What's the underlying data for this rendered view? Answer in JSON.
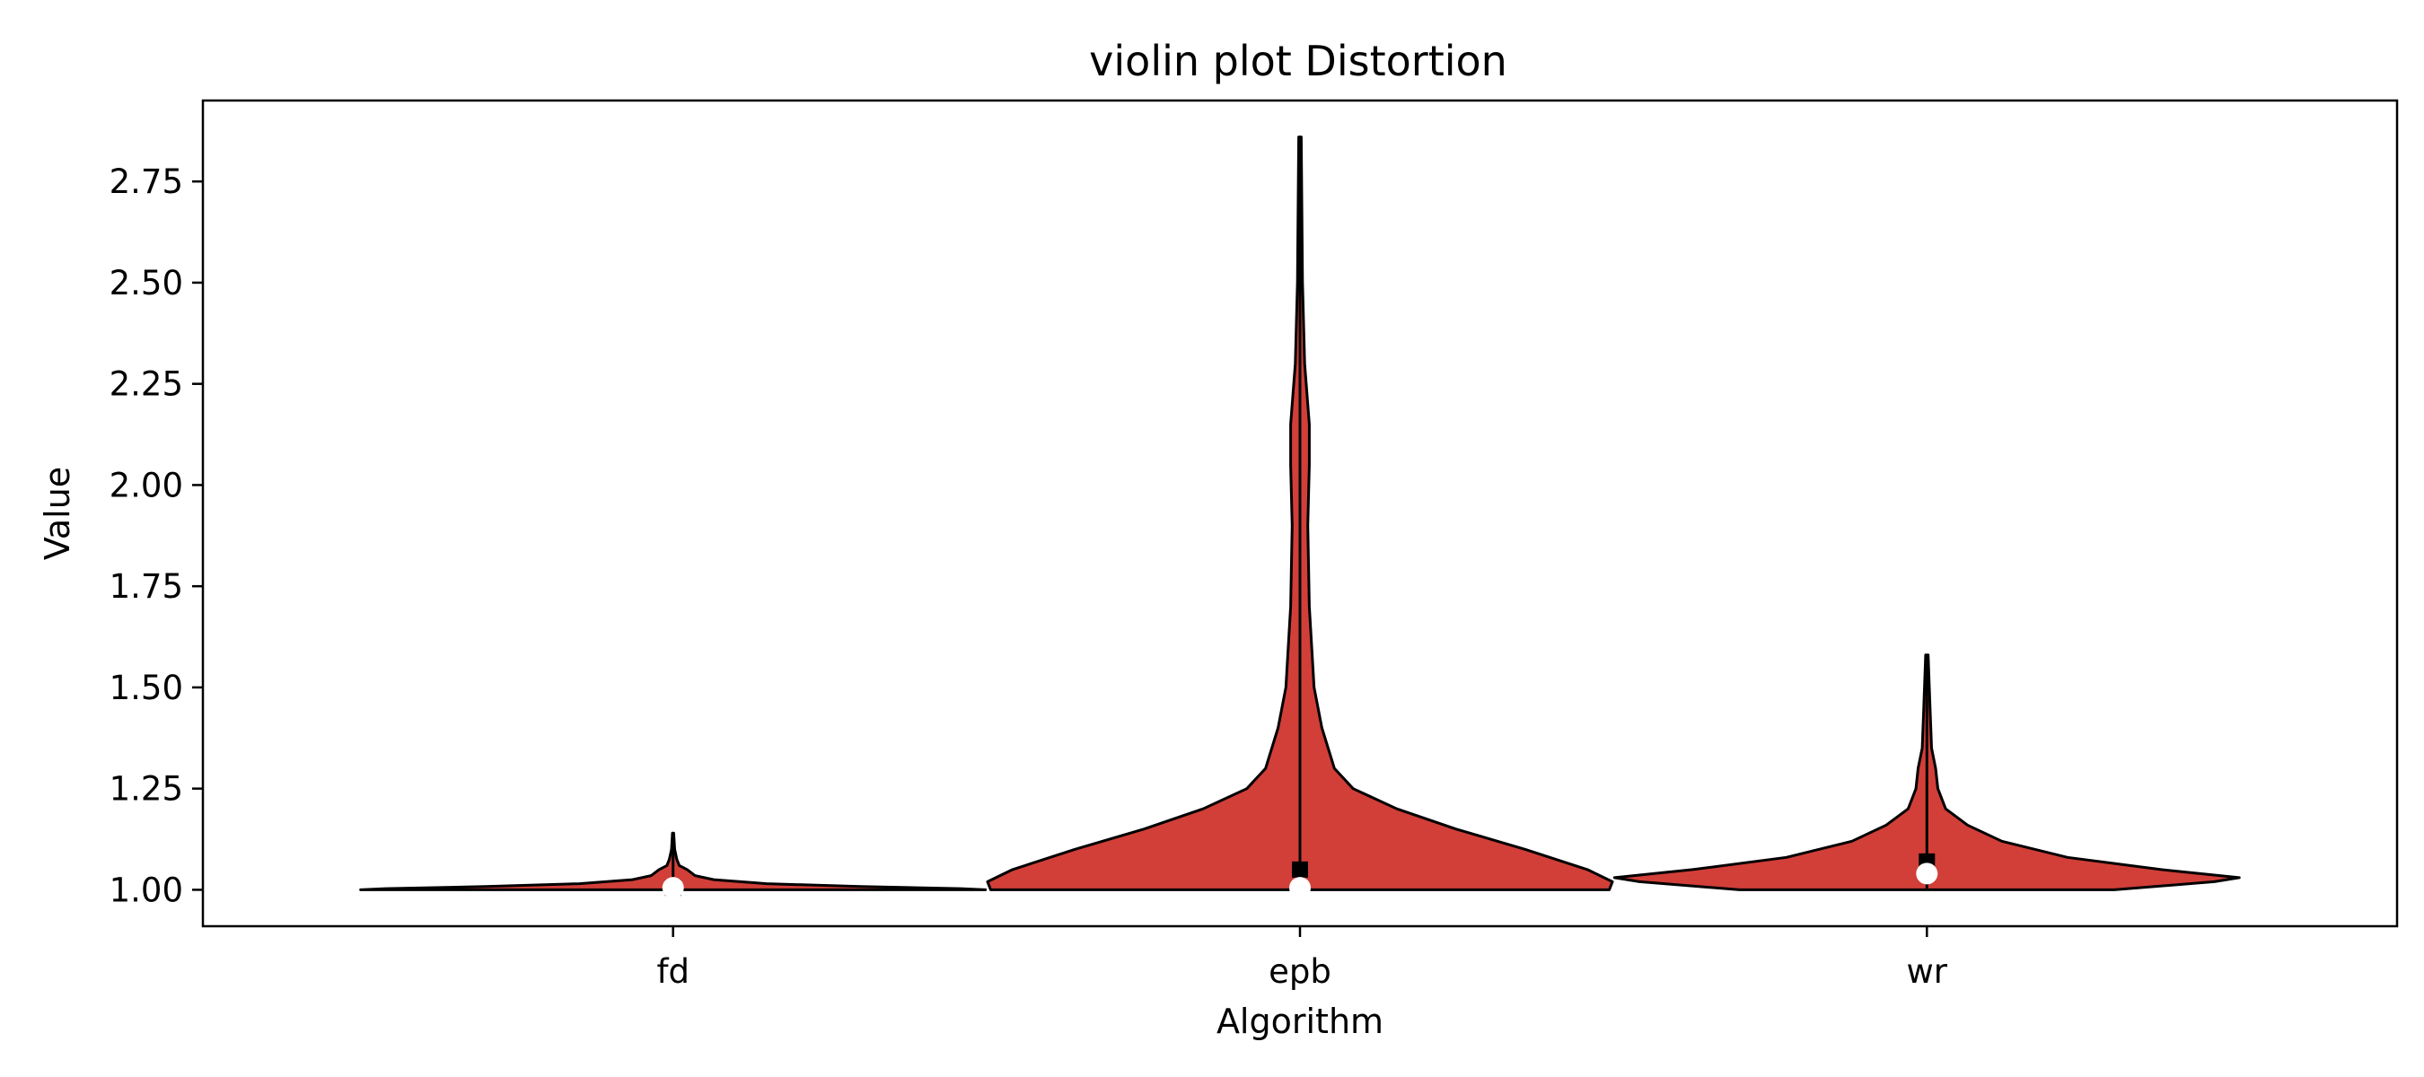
{
  "chart_data": {
    "type": "violin",
    "title": "violin plot Distortion",
    "xlabel": "Algorithm",
    "ylabel": "Value",
    "categories": [
      "fd",
      "epb",
      "wr"
    ],
    "ylim": [
      0.91,
      2.95
    ],
    "yticks": [
      1.0,
      1.25,
      1.5,
      1.75,
      2.0,
      2.25,
      2.5,
      2.75
    ],
    "ytick_labels": [
      "1.00",
      "1.25",
      "1.50",
      "1.75",
      "2.00",
      "2.25",
      "2.50",
      "2.75"
    ],
    "grid": false,
    "colors": {
      "fill": "#d13f38",
      "edge": "#000000",
      "median": "#ffffff",
      "mean": "#000000"
    },
    "violins": [
      {
        "name": "fd",
        "min": 1.0,
        "max": 1.14,
        "median": 1.005,
        "mean": 1.005,
        "profile": [
          [
            1.0,
            1.0
          ],
          [
            1.003,
            0.92
          ],
          [
            1.008,
            0.6
          ],
          [
            1.015,
            0.3
          ],
          [
            1.025,
            0.13
          ],
          [
            1.035,
            0.07
          ],
          [
            1.05,
            0.045
          ],
          [
            1.06,
            0.02
          ],
          [
            1.075,
            0.012
          ],
          [
            1.1,
            0.005
          ],
          [
            1.14,
            0.002
          ]
        ]
      },
      {
        "name": "epb",
        "min": 1.0,
        "max": 2.86,
        "median": 1.005,
        "mean": 1.05,
        "profile": [
          [
            1.0,
            0.99
          ],
          [
            1.02,
            1.0
          ],
          [
            1.05,
            0.92
          ],
          [
            1.1,
            0.72
          ],
          [
            1.15,
            0.5
          ],
          [
            1.2,
            0.31
          ],
          [
            1.25,
            0.17
          ],
          [
            1.3,
            0.11
          ],
          [
            1.4,
            0.07
          ],
          [
            1.5,
            0.045
          ],
          [
            1.7,
            0.03
          ],
          [
            1.9,
            0.025
          ],
          [
            2.05,
            0.03
          ],
          [
            2.15,
            0.03
          ],
          [
            2.3,
            0.015
          ],
          [
            2.5,
            0.008
          ],
          [
            2.86,
            0.004
          ]
        ]
      },
      {
        "name": "wr",
        "min": 1.0,
        "max": 1.58,
        "median": 1.04,
        "mean": 1.07,
        "profile": [
          [
            1.0,
            0.6
          ],
          [
            1.02,
            0.92
          ],
          [
            1.03,
            1.0
          ],
          [
            1.05,
            0.75
          ],
          [
            1.08,
            0.45
          ],
          [
            1.12,
            0.24
          ],
          [
            1.16,
            0.13
          ],
          [
            1.2,
            0.06
          ],
          [
            1.25,
            0.035
          ],
          [
            1.3,
            0.028
          ],
          [
            1.35,
            0.015
          ],
          [
            1.45,
            0.01
          ],
          [
            1.58,
            0.004
          ]
        ]
      }
    ]
  }
}
